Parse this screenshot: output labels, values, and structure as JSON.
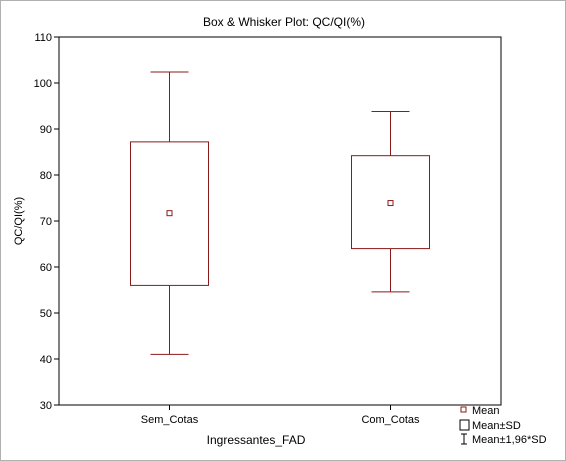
{
  "chart_data": {
    "type": "boxplot",
    "title": "Box & Whisker Plot: QC/QI(%)",
    "xlabel": "Ingressantes_FAD",
    "ylabel": "QC/QI(%)",
    "ylim": [
      30,
      110
    ],
    "yticks": [
      30,
      40,
      50,
      60,
      70,
      80,
      90,
      100,
      110
    ],
    "grid": false,
    "legend_position": "bottom-right",
    "categories": [
      "Sem_Cotas",
      "Com_Cotas"
    ],
    "groups": [
      {
        "category": "Sem_Cotas",
        "mean": 71.7,
        "sd_low": 56.0,
        "sd_high": 87.2,
        "whisker_low": 41.0,
        "whisker_high": 102.4
      },
      {
        "category": "Com_Cotas",
        "mean": 73.9,
        "sd_low": 64.0,
        "sd_high": 84.2,
        "whisker_low": 54.6,
        "whisker_high": 93.8
      }
    ],
    "legend": [
      {
        "symbol": "small-square",
        "label": "Mean"
      },
      {
        "symbol": "box",
        "label": "Mean±SD"
      },
      {
        "symbol": "whisker",
        "label": "Mean±1,96*SD"
      }
    ],
    "colors": {
      "series": "#8b1a1a",
      "axes": "#000000",
      "background": "#ffffff"
    }
  }
}
